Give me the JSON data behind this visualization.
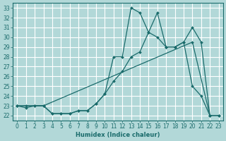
{
  "xlabel": "Humidex (Indice chaleur)",
  "background_color": "#b2d8d8",
  "grid_color": "#ffffff",
  "line_color": "#1a6b6b",
  "xlim": [
    -0.5,
    23.5
  ],
  "ylim": [
    21.5,
    33.5
  ],
  "xticks": [
    0,
    1,
    2,
    3,
    4,
    5,
    6,
    7,
    8,
    9,
    10,
    11,
    12,
    13,
    14,
    15,
    16,
    17,
    18,
    19,
    20,
    21,
    22,
    23
  ],
  "yticks": [
    22,
    23,
    24,
    25,
    26,
    27,
    28,
    29,
    30,
    31,
    32,
    33
  ],
  "line1_x": [
    0,
    1,
    2,
    3,
    4,
    5,
    6,
    7,
    8,
    9,
    10,
    11,
    12,
    13,
    14,
    15,
    16,
    17,
    18,
    19,
    20,
    21,
    22,
    23
  ],
  "line1_y": [
    23,
    23,
    23,
    23,
    22.2,
    22.2,
    22.2,
    22.5,
    22.5,
    23.2,
    24.2,
    25.5,
    26.5,
    28,
    28.5,
    30.5,
    30,
    29,
    29,
    29.5,
    25,
    24,
    22,
    22
  ],
  "line2_x": [
    0,
    1,
    2,
    3,
    4,
    5,
    6,
    7,
    8,
    9,
    10,
    11,
    12,
    13,
    14,
    15,
    16,
    17,
    18,
    19,
    20,
    21,
    22,
    23
  ],
  "line2_y": [
    23,
    22.8,
    23,
    23,
    22.2,
    22.2,
    22.2,
    22.5,
    22.5,
    23.2,
    24.2,
    28.0,
    28.0,
    33.0,
    32.5,
    30.5,
    32.5,
    29.0,
    29.0,
    29.5,
    31.0,
    29.5,
    22.0,
    22.0
  ],
  "line3_x": [
    0,
    3,
    20,
    22
  ],
  "line3_y": [
    23,
    23,
    29.5,
    22
  ]
}
